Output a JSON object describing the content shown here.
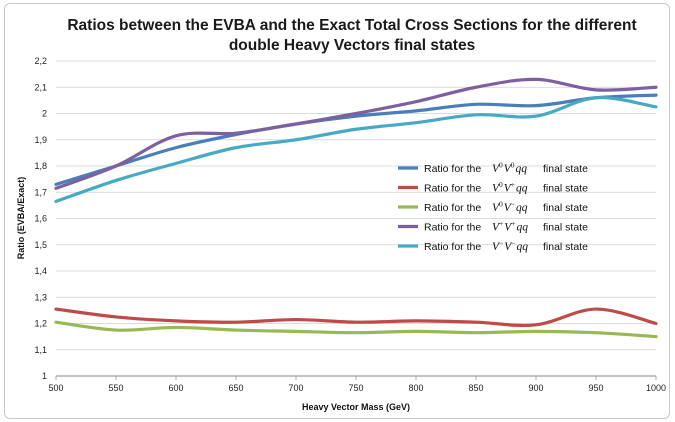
{
  "chart_data": {
    "type": "line",
    "title_lines": [
      "Ratios between the EVBA and the Exact Total Cross Sections for the different",
      "double Heavy Vectors final states"
    ],
    "xlabel": "Heavy Vector Mass (GeV)",
    "ylabel": "Ratio (EVBA/Exact)",
    "xlim": [
      500,
      1000
    ],
    "ylim": [
      1,
      2.2
    ],
    "x_ticks": [
      "500",
      "550",
      "600",
      "650",
      "700",
      "750",
      "800",
      "850",
      "900",
      "950",
      "1000"
    ],
    "y_ticks": [
      "1",
      "1,1",
      "1,2",
      "1,3",
      "1,4",
      "1,5",
      "1,6",
      "1,7",
      "1,8",
      "1,9",
      "2",
      "2,1",
      "2,2"
    ],
    "grid": true,
    "legend_position": "right",
    "x": [
      500,
      550,
      600,
      650,
      700,
      750,
      800,
      850,
      900,
      950,
      1000
    ],
    "series": [
      {
        "legend_prefix": "Ratio for the",
        "legend_math": [
          [
            "V",
            "0"
          ],
          [
            "V",
            "0"
          ],
          [
            "qq",
            ""
          ]
        ],
        "legend_suffix": "final state",
        "color": "#4a7ebb",
        "values": [
          1.73,
          1.8,
          1.87,
          1.92,
          1.96,
          1.99,
          2.01,
          2.035,
          2.03,
          2.06,
          2.07
        ]
      },
      {
        "legend_prefix": "Ratio for the",
        "legend_math": [
          [
            "V",
            "0"
          ],
          [
            "V",
            "+"
          ],
          [
            "qq",
            ""
          ]
        ],
        "legend_suffix": "final state",
        "color": "#be4b48",
        "values": [
          1.255,
          1.225,
          1.21,
          1.205,
          1.215,
          1.205,
          1.21,
          1.205,
          1.195,
          1.255,
          1.2
        ]
      },
      {
        "legend_prefix": "Ratio for the",
        "legend_math": [
          [
            "V",
            "0"
          ],
          [
            "V",
            "−"
          ],
          [
            "qq",
            ""
          ]
        ],
        "legend_suffix": "final state",
        "color": "#98b954",
        "values": [
          1.205,
          1.175,
          1.185,
          1.175,
          1.17,
          1.165,
          1.17,
          1.165,
          1.17,
          1.165,
          1.15
        ]
      },
      {
        "legend_prefix": "Ratio for the",
        "legend_math": [
          [
            "V",
            "+"
          ],
          [
            "V",
            "+"
          ],
          [
            "qq",
            ""
          ]
        ],
        "legend_suffix": "final state",
        "color": "#7d60a0",
        "values": [
          1.715,
          1.8,
          1.915,
          1.925,
          1.96,
          2.0,
          2.045,
          2.1,
          2.13,
          2.09,
          2.1
        ]
      },
      {
        "legend_prefix": "Ratio for the",
        "legend_math": [
          [
            "V",
            "−"
          ],
          [
            "V",
            "−"
          ],
          [
            "qq",
            ""
          ]
        ],
        "legend_suffix": "final state",
        "color": "#46aac5",
        "values": [
          1.665,
          1.745,
          1.81,
          1.87,
          1.9,
          1.94,
          1.965,
          1.995,
          1.99,
          2.06,
          2.025
        ]
      }
    ]
  }
}
